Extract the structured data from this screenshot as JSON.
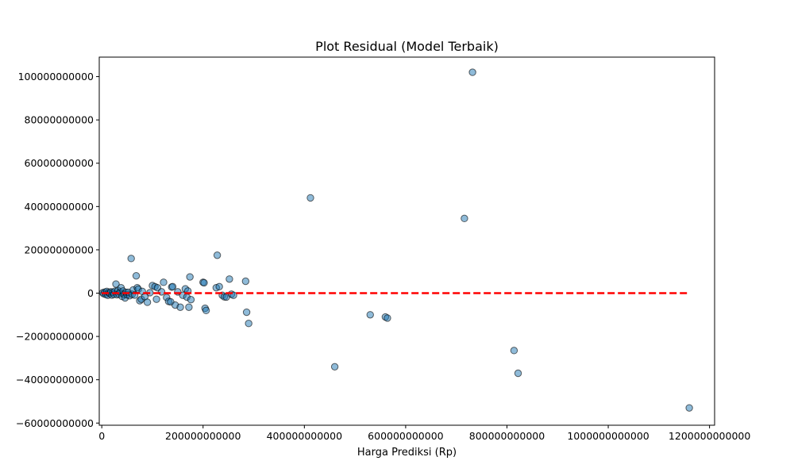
{
  "chart_data": {
    "type": "scatter",
    "title": "Plot Residual (Model Terbaik)",
    "xlabel": "Harga Prediksi (Rp)",
    "ylabel": "",
    "xlim": [
      -5000000000,
      1210000000000
    ],
    "ylim": [
      -61000000000,
      109000000000
    ],
    "x_ticks": [
      0,
      200000000000,
      400000000000,
      600000000000,
      800000000000,
      1000000000000,
      1200000000000
    ],
    "x_tick_labels": [
      "0",
      "200000000000",
      "400000000000",
      "600000000000",
      "800000000000",
      "1000000000000",
      "1200000000000"
    ],
    "y_ticks": [
      -60000000000,
      -40000000000,
      -20000000000,
      0,
      20000000000,
      40000000000,
      60000000000,
      80000000000,
      100000000000
    ],
    "y_tick_labels": [
      "−60000000000",
      "−40000000000",
      "−20000000000",
      "0",
      "20000000000",
      "40000000000",
      "60000000000",
      "80000000000",
      "100000000000"
    ],
    "grid": false,
    "point_color": "#1f77b4",
    "reference_line": {
      "y": 0,
      "x_range": [
        0,
        1160000000000
      ],
      "color": "#ff0000",
      "style": "dashed"
    },
    "points": [
      [
        2000000000,
        200000000
      ],
      [
        4000000000,
        -300000000
      ],
      [
        6000000000,
        500000000
      ],
      [
        8000000000,
        -600000000
      ],
      [
        10000000000,
        800000000
      ],
      [
        12000000000,
        -1000000000
      ],
      [
        14000000000,
        300000000
      ],
      [
        16000000000,
        -200000000
      ],
      [
        18000000000,
        600000000
      ],
      [
        20000000000,
        -900000000
      ],
      [
        22000000000,
        400000000
      ],
      [
        24000000000,
        -500000000
      ],
      [
        26000000000,
        900000000
      ],
      [
        28000000000,
        4200000000
      ],
      [
        30000000000,
        -700000000
      ],
      [
        32000000000,
        1200000000
      ],
      [
        34000000000,
        -400000000
      ],
      [
        36000000000,
        500000000
      ],
      [
        38000000000,
        2500000000
      ],
      [
        40000000000,
        -1500000000
      ],
      [
        42000000000,
        1000000000
      ],
      [
        44000000000,
        -600000000
      ],
      [
        46000000000,
        -2200000000
      ],
      [
        48000000000,
        300000000
      ],
      [
        50000000000,
        -800000000
      ],
      [
        52000000000,
        400000000
      ],
      [
        55000000000,
        -1200000000
      ],
      [
        58000000000,
        16000000000
      ],
      [
        60000000000,
        -500000000
      ],
      [
        62000000000,
        1500000000
      ],
      [
        65000000000,
        -900000000
      ],
      [
        68000000000,
        8000000000
      ],
      [
        70000000000,
        2500000000
      ],
      [
        72000000000,
        1800000000
      ],
      [
        75000000000,
        -3500000000
      ],
      [
        78000000000,
        -2800000000
      ],
      [
        80000000000,
        800000000
      ],
      [
        85000000000,
        -1600000000
      ],
      [
        90000000000,
        -4200000000
      ],
      [
        95000000000,
        200000000
      ],
      [
        100000000000,
        3500000000
      ],
      [
        105000000000,
        3000000000
      ],
      [
        108000000000,
        -2800000000
      ],
      [
        110000000000,
        2500000000
      ],
      [
        118000000000,
        600000000
      ],
      [
        122000000000,
        5000000000
      ],
      [
        128000000000,
        -2000000000
      ],
      [
        132000000000,
        -3800000000
      ],
      [
        136000000000,
        -4000000000
      ],
      [
        138000000000,
        2800000000
      ],
      [
        140000000000,
        3000000000
      ],
      [
        145000000000,
        -5500000000
      ],
      [
        150000000000,
        600000000
      ],
      [
        155000000000,
        -6500000000
      ],
      [
        160000000000,
        -1000000000
      ],
      [
        165000000000,
        2000000000
      ],
      [
        168000000000,
        -1800000000
      ],
      [
        170000000000,
        1000000000
      ],
      [
        172000000000,
        -6500000000
      ],
      [
        174000000000,
        7500000000
      ],
      [
        176000000000,
        -3000000000
      ],
      [
        200000000000,
        5000000000
      ],
      [
        202000000000,
        4800000000
      ],
      [
        204000000000,
        -7000000000
      ],
      [
        206000000000,
        -8000000000
      ],
      [
        226000000000,
        2500000000
      ],
      [
        228000000000,
        17500000000
      ],
      [
        232000000000,
        3000000000
      ],
      [
        238000000000,
        -1000000000
      ],
      [
        242000000000,
        -1700000000
      ],
      [
        246000000000,
        -1800000000
      ],
      [
        252000000000,
        6500000000
      ],
      [
        256000000000,
        -500000000
      ],
      [
        260000000000,
        -1000000000
      ],
      [
        284000000000,
        5500000000
      ],
      [
        286000000000,
        -8800000000
      ],
      [
        290000000000,
        -14000000000
      ],
      [
        412000000000,
        44000000000
      ],
      [
        460000000000,
        -34000000000
      ],
      [
        530000000000,
        -10000000000
      ],
      [
        560000000000,
        -11000000000
      ],
      [
        564000000000,
        -11500000000
      ],
      [
        716000000000,
        34500000000
      ],
      [
        732000000000,
        102000000000
      ],
      [
        814000000000,
        -26500000000
      ],
      [
        822000000000,
        -37000000000
      ],
      [
        1160000000000,
        -53000000000
      ]
    ]
  }
}
